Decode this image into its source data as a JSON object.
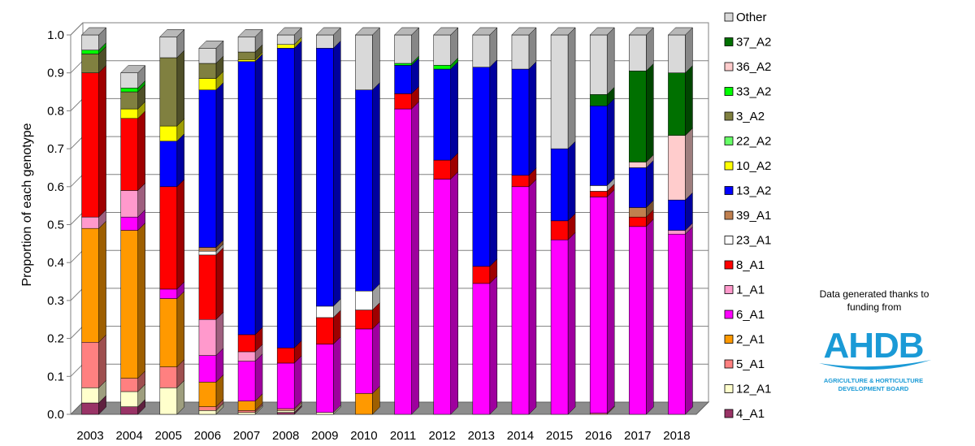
{
  "chart_data": {
    "type": "bar",
    "stacked": true,
    "ylabel": "Proportion of each genotype",
    "ylim": [
      0,
      1.0
    ],
    "yticks": [
      "0.0",
      "0.1",
      "0.2",
      "0.3",
      "0.4",
      "0.5",
      "0.6",
      "0.7",
      "0.8",
      "0.9",
      "1.0"
    ],
    "grid": true,
    "legend_position": "right",
    "categories": [
      "2003",
      "2004",
      "2005",
      "2006",
      "2007",
      "2008",
      "2009",
      "2010",
      "2011",
      "2012",
      "2013",
      "2014",
      "2015",
      "2016",
      "2017",
      "2018"
    ],
    "series": [
      {
        "name": "4_A1",
        "color": "#993366",
        "values": [
          0.03,
          0.02,
          0,
          0,
          0,
          0.005,
          0,
          0,
          0,
          0,
          0,
          0,
          0,
          0,
          0,
          0
        ]
      },
      {
        "name": "12_A1",
        "color": "#ffffcc",
        "values": [
          0.04,
          0.04,
          0.07,
          0.01,
          0.005,
          0.005,
          0.005,
          0,
          0,
          0,
          0,
          0,
          0,
          0,
          0,
          0
        ]
      },
      {
        "name": "5_A1",
        "color": "#ff8080",
        "values": [
          0.12,
          0.035,
          0.055,
          0.01,
          0.005,
          0.005,
          0,
          0,
          0,
          0,
          0,
          0,
          0,
          0.003,
          0,
          0
        ]
      },
      {
        "name": "2_A1",
        "color": "#ff9900",
        "values": [
          0.3,
          0.39,
          0.18,
          0.065,
          0.025,
          0,
          0,
          0.055,
          0,
          0,
          0,
          0,
          0,
          0,
          0,
          0
        ]
      },
      {
        "name": "6_A1",
        "color": "#ff00ff",
        "values": [
          0,
          0.035,
          0.025,
          0.07,
          0.105,
          0.12,
          0.18,
          0.17,
          0.805,
          0.62,
          0.345,
          0.6,
          0.46,
          0.57,
          0.495,
          0.475
        ]
      },
      {
        "name": "1_A1",
        "color": "#ff99cc",
        "values": [
          0.03,
          0.07,
          0,
          0.095,
          0.025,
          0,
          0,
          0,
          0,
          0,
          0,
          0,
          0,
          0,
          0,
          0.01
        ]
      },
      {
        "name": "8_A1",
        "color": "#ff0000",
        "values": [
          0.38,
          0.19,
          0.27,
          0.17,
          0.045,
          0.04,
          0.07,
          0.05,
          0.04,
          0.05,
          0.045,
          0.03,
          0.05,
          0.015,
          0.025,
          0
        ]
      },
      {
        "name": "23_A1",
        "color": "#ffffff",
        "values": [
          0,
          0,
          0,
          0.01,
          0,
          0,
          0.03,
          0.05,
          0,
          0,
          0,
          0,
          0,
          0.015,
          0,
          0
        ]
      },
      {
        "name": "39_A1",
        "color": "#c0804f",
        "values": [
          0,
          0,
          0,
          0.01,
          0,
          0,
          0,
          0,
          0,
          0,
          0,
          0,
          0,
          0,
          0.025,
          0
        ]
      },
      {
        "name": "13_A2",
        "color": "#0000ff",
        "values": [
          0,
          0,
          0.12,
          0.415,
          0.72,
          0.79,
          0.68,
          0.53,
          0.075,
          0.24,
          0.525,
          0.28,
          0.19,
          0.21,
          0.105,
          0.08
        ]
      },
      {
        "name": "10_A2",
        "color": "#ffff00",
        "values": [
          0,
          0.025,
          0.04,
          0.03,
          0.005,
          0.01,
          0,
          0,
          0,
          0,
          0,
          0,
          0,
          0,
          0,
          0
        ]
      },
      {
        "name": "22_A2",
        "color": "#66ff66",
        "values": [
          0,
          0,
          0,
          0,
          0,
          0,
          0,
          0,
          0,
          0,
          0,
          0,
          0,
          0,
          0,
          0
        ]
      },
      {
        "name": "3_A2",
        "color": "#808040",
        "values": [
          0.05,
          0.045,
          0.18,
          0.04,
          0.02,
          0,
          0,
          0,
          0,
          0,
          0,
          0,
          0,
          0,
          0,
          0
        ]
      },
      {
        "name": "33_A2",
        "color": "#00ff00",
        "values": [
          0.01,
          0.01,
          0,
          0,
          0,
          0,
          0,
          0,
          0.005,
          0.01,
          0,
          0,
          0,
          0,
          0,
          0
        ]
      },
      {
        "name": "36_A2",
        "color": "#ffcccc",
        "values": [
          0,
          0,
          0,
          0,
          0,
          0,
          0,
          0,
          0,
          0,
          0,
          0,
          0,
          0,
          0.015,
          0.17
        ]
      },
      {
        "name": "37_A2",
        "color": "#007000",
        "values": [
          0,
          0,
          0,
          0,
          0,
          0,
          0,
          0,
          0,
          0,
          0,
          0,
          0,
          0.03,
          0.24,
          0.165
        ]
      },
      {
        "name": "Other",
        "color": "#d9d9d9",
        "values": [
          0.04,
          0.04,
          0.055,
          0.04,
          0.04,
          0.025,
          0.035,
          0.145,
          0.075,
          0.08,
          0.085,
          0.09,
          0.3,
          0.157,
          0.095,
          0.1
        ]
      }
    ]
  },
  "credit": {
    "line1": "Data generated thanks to",
    "line2": "funding from"
  },
  "logo": {
    "wordmark": "AHDB",
    "subtitle1": "AGRICULTURE & HORTICULTURE",
    "subtitle2": "DEVELOPMENT BOARD",
    "color": "#1a9ad6"
  }
}
